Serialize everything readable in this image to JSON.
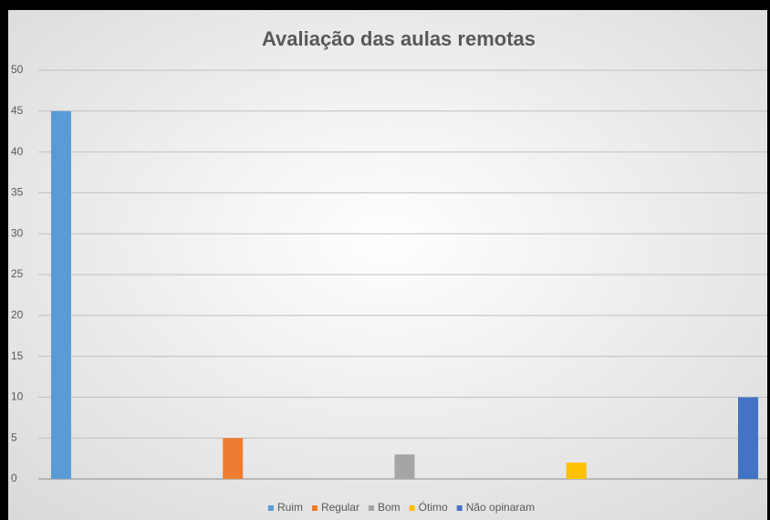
{
  "chart_data": {
    "type": "bar",
    "title": "Avaliação das aulas remotas",
    "series": [
      {
        "name": "Ruim",
        "color": "#5b9bd5",
        "values": [
          45
        ]
      },
      {
        "name": "Regular",
        "color": "#ed7d31",
        "values": [
          5
        ]
      },
      {
        "name": "Bom",
        "color": "#a5a5a5",
        "values": [
          3
        ]
      },
      {
        "name": "Ótimo",
        "color": "#ffc000",
        "values": [
          2
        ]
      },
      {
        "name": "Não opinaram",
        "color": "#4472c4",
        "values": [
          10
        ]
      }
    ],
    "ylim": [
      0,
      50
    ],
    "yticks": [
      0,
      5,
      10,
      15,
      20,
      25,
      30,
      35,
      40,
      45,
      50
    ],
    "grid": true,
    "legend": "bottom"
  }
}
